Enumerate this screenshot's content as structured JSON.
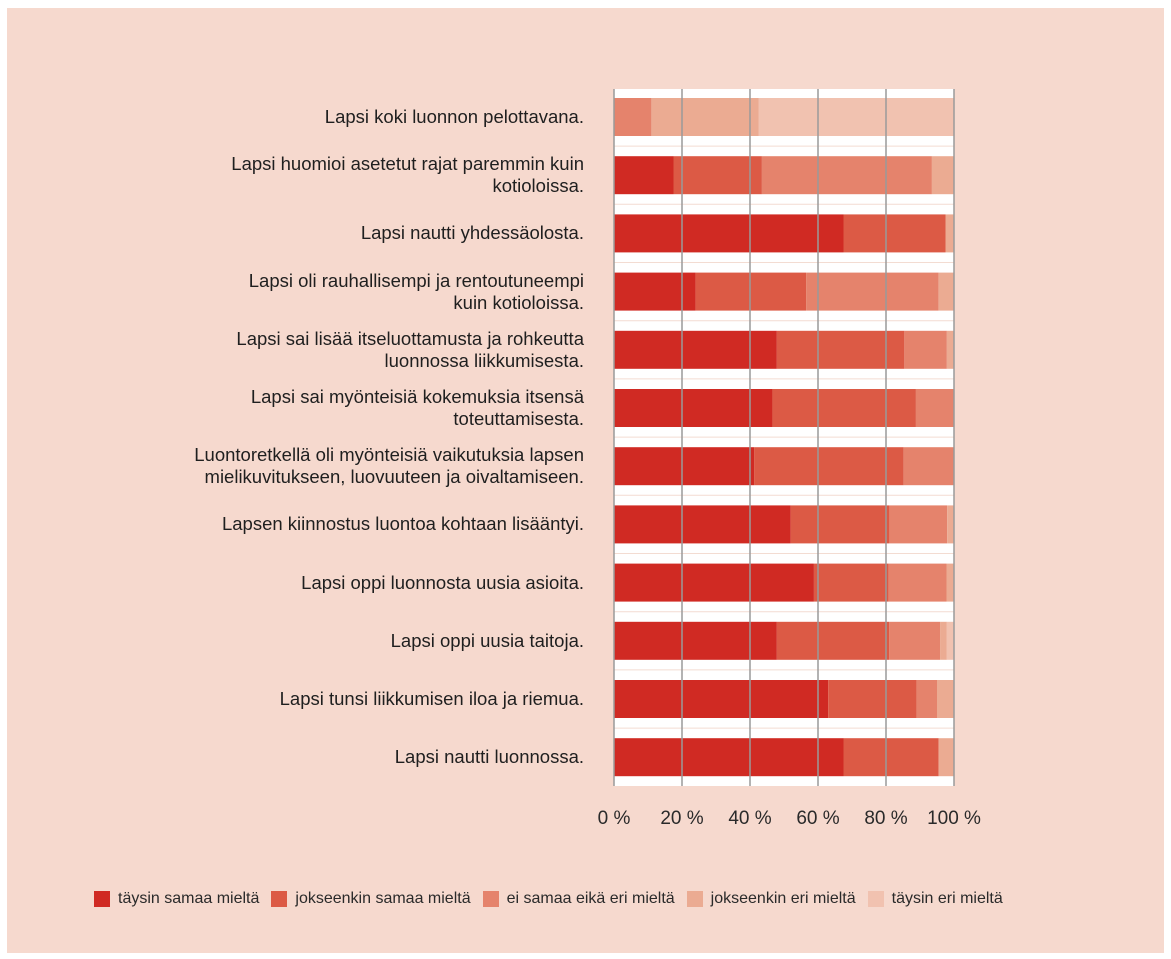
{
  "chart_data": {
    "type": "bar",
    "orientation": "horizontal",
    "stacked": "percent",
    "xlim": [
      0,
      100
    ],
    "tick_labels": [
      "0 %",
      "20 %",
      "40 %",
      "60 %",
      "80 %",
      "100 %"
    ],
    "grid": true,
    "legend_position": "bottom",
    "categories": [
      [
        "Lapsi koki luonnon pelottavana."
      ],
      [
        "Lapsi huomioi asetetut rajat paremmin kuin",
        "kotioloissa."
      ],
      [
        "Lapsi nautti yhdessäolosta."
      ],
      [
        "Lapsi oli rauhallisempi ja rentoutuneempi",
        "kuin kotioloissa."
      ],
      [
        "Lapsi sai lisää itseluottamusta ja rohkeutta",
        "luonnossa liikkumisesta."
      ],
      [
        "Lapsi sai myönteisiä kokemuksia itsensä",
        "toteuttamisesta."
      ],
      [
        "Luontoretkellä oli myönteisiä vaikutuksia lapsen",
        "mielikuvitukseen, luovuuteen ja oivaltamiseen."
      ],
      [
        "Lapsen kiinnostus luontoa kohtaan lisääntyi."
      ],
      [
        "Lapsi oppi luonnosta uusia asioita."
      ],
      [
        "Lapsi oppi uusia taitoja."
      ],
      [
        "Lapsi tunsi liikkumisen iloa ja riemua."
      ],
      [
        "Lapsi nautti luonnossa."
      ]
    ],
    "series": [
      {
        "name": "täysin samaa mieltä",
        "color": "#d02a23",
        "values": [
          0,
          17.5,
          67.5,
          24,
          47.9,
          46.6,
          41.2,
          52,
          58.8,
          47.9,
          63,
          67.5
        ]
      },
      {
        "name": "jokseenkin samaa mieltä",
        "color": "#dc5a45",
        "values": [
          0,
          26,
          30,
          32.5,
          37.5,
          42.2,
          44,
          29,
          22,
          33,
          26,
          28
        ]
      },
      {
        "name": "ei samaa eikä eri mieltä",
        "color": "#e5836c",
        "values": [
          11,
          50,
          0,
          39,
          12.5,
          11.2,
          14.8,
          17,
          17,
          15,
          6,
          0
        ]
      },
      {
        "name": "jokseenkin eri mieltä",
        "color": "#ebab92",
        "values": [
          31.5,
          6.5,
          2.5,
          4.5,
          2.1,
          0,
          0,
          2,
          2.2,
          2,
          5,
          4.5
        ]
      },
      {
        "name": "täysin eri mieltä",
        "color": "#f1c2b0",
        "values": [
          57.5,
          0,
          0,
          0,
          0,
          0,
          0,
          0,
          0,
          2.1,
          0,
          0
        ]
      }
    ]
  }
}
